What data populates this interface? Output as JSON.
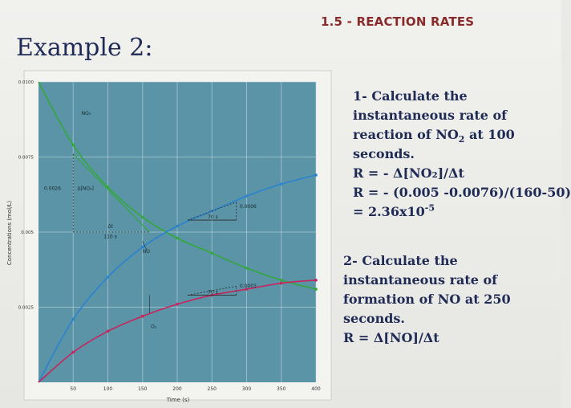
{
  "header": {
    "topic": "1.5 - REACTION RATES",
    "title": "Example 2:"
  },
  "question1": {
    "line1": "1- Calculate the",
    "line2": "instantaneous rate of",
    "line3_pre": "reaction  of NO",
    "line3_sub": "2",
    "line3_post": " at 100",
    "line4": "seconds.",
    "formula": "R = - Δ[NO₂]/Δt",
    "calc": "R = - (0.005 -0.0076)/(160-50)",
    "result_pre": "= 2.36x10",
    "result_sup": "-5"
  },
  "question2": {
    "line1": "2- Calculate the",
    "line2": "instantaneous rate of",
    "line3": "formation of NO at 250",
    "line4": "seconds.",
    "formula": "R = Δ[NO]/Δt"
  },
  "colors": {
    "plot_bg": "#5a94a6",
    "no2_curve": "#33a83a",
    "no_curve": "#2b82cf",
    "o2_curve": "#c8245e",
    "title_text": "#1f2a55",
    "topic_text": "#8a2b2b"
  },
  "chart_data": {
    "type": "line",
    "xlabel": "Time (s)",
    "ylabel": "Concentrations (mol/L)",
    "xlim": [
      0,
      400
    ],
    "ylim": [
      0,
      0.01
    ],
    "x_ticks": [
      "50",
      "100",
      "150",
      "200",
      "250",
      "300",
      "350",
      "400"
    ],
    "y_ticks": [
      "0.0025",
      "0.005",
      "0.0075",
      "0.0100"
    ],
    "x": [
      0,
      50,
      100,
      150,
      200,
      250,
      300,
      350,
      400
    ],
    "series": [
      {
        "name": "NO₂",
        "values": [
          0.01,
          0.0079,
          0.0065,
          0.0055,
          0.0048,
          0.0043,
          0.0038,
          0.0034,
          0.0031
        ]
      },
      {
        "name": "NO",
        "values": [
          0.0,
          0.0021,
          0.0035,
          0.0045,
          0.0052,
          0.0057,
          0.0062,
          0.0066,
          0.0069
        ]
      },
      {
        "name": "O₂",
        "values": [
          0.0,
          0.001,
          0.0017,
          0.0022,
          0.0026,
          0.0029,
          0.0031,
          0.0033,
          0.0034
        ]
      }
    ],
    "annotations": {
      "delta_no2": "Δ[NO₂]",
      "delta_no2_value": "0.0026",
      "delta_t_label": "Δt",
      "delta_t_value": "110 s",
      "no_delta_value": "0.0006",
      "no_delta_t": "70 s",
      "o2_delta_value": "0.0003",
      "o2_delta_t": "70 s"
    }
  }
}
